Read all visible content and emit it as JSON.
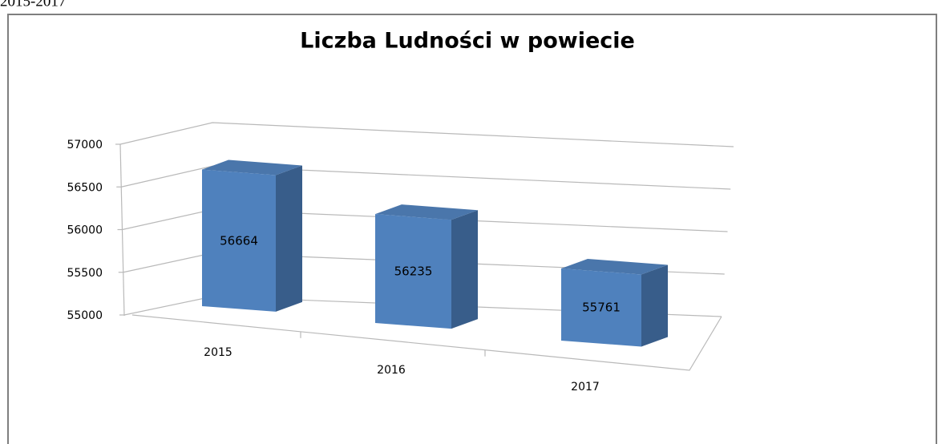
{
  "header_text": "2015-2017",
  "chart_data": {
    "type": "bar3d",
    "title": "Liczba Ludności w powiecie",
    "categories": [
      "2015",
      "2016",
      "2017"
    ],
    "values": [
      56664,
      56235,
      55761
    ],
    "color": "#4f81bd",
    "ylim": [
      55000,
      57000
    ],
    "yticks": [
      55000,
      55500,
      56000,
      56500,
      57000
    ],
    "grid": true
  }
}
